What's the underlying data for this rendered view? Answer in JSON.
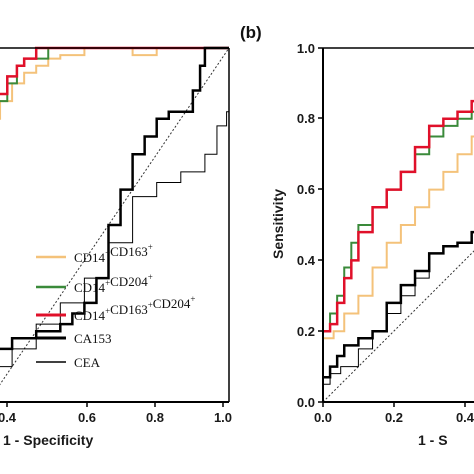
{
  "panel_label": "(b)",
  "legend": {
    "entries": [
      {
        "name": "CD14+CD163+",
        "parts": [
          [
            "CD14",
            "+"
          ],
          [
            "CD163",
            "+"
          ]
        ],
        "color": "#f4c27a",
        "width": 2
      },
      {
        "name": "CD14+CD204+",
        "parts": [
          [
            "CD14",
            "+"
          ],
          [
            "CD204",
            "+"
          ]
        ],
        "color": "#3a8a3a",
        "width": 2
      },
      {
        "name": "CD14+CD163+CD204+",
        "parts": [
          [
            "CD14",
            "+"
          ],
          [
            "CD163",
            "+"
          ],
          [
            "CD204",
            "+"
          ]
        ],
        "color": "#e0102a",
        "width": 2.5
      },
      {
        "name": "CA153",
        "parts": [
          [
            "CA153",
            ""
          ]
        ],
        "color": "#000000",
        "width": 2.5
      },
      {
        "name": "CEA",
        "parts": [
          [
            "CEA",
            ""
          ]
        ],
        "color": "#000000",
        "width": 1
      }
    ]
  },
  "chart_data": [
    {
      "type": "line",
      "panel": "a",
      "xlabel": "1 - Specificity",
      "ylabel": "",
      "xlim": [
        0,
        1
      ],
      "ylim": [
        0,
        1
      ],
      "x_ticks": [
        "0.4",
        "0.6",
        "0.8",
        "1.0"
      ],
      "y_ticks": [],
      "reference_line": "diagonal",
      "series": [
        {
          "name": "CD14+CD163+",
          "color": "#f4c27a",
          "width": 2,
          "points": [
            [
              0,
              0.7
            ],
            [
              0.02,
              0.8
            ],
            [
              0.05,
              0.85
            ],
            [
              0.1,
              0.9
            ],
            [
              0.15,
              0.93
            ],
            [
              0.2,
              0.95
            ],
            [
              0.25,
              0.97
            ],
            [
              0.3,
              0.98
            ],
            [
              0.4,
              1.0
            ],
            [
              0.5,
              1.0
            ],
            [
              0.6,
              0.98
            ],
            [
              0.7,
              1.0
            ],
            [
              1,
              1
            ]
          ]
        },
        {
          "name": "CD14+CD204+",
          "color": "#3a8a3a",
          "width": 2,
          "points": [
            [
              0,
              0.75
            ],
            [
              0.04,
              0.85
            ],
            [
              0.08,
              0.9
            ],
            [
              0.12,
              0.95
            ],
            [
              0.15,
              0.97
            ],
            [
              0.2,
              0.97
            ],
            [
              0.25,
              1.0
            ],
            [
              1,
              1
            ]
          ]
        },
        {
          "name": "CD14+CD163+CD204+",
          "color": "#e0102a",
          "width": 2.5,
          "points": [
            [
              0,
              0.72
            ],
            [
              0.02,
              0.87
            ],
            [
              0.05,
              0.87
            ],
            [
              0.08,
              0.92
            ],
            [
              0.12,
              0.95
            ],
            [
              0.15,
              0.97
            ],
            [
              0.2,
              1.0
            ],
            [
              1,
              1
            ]
          ]
        },
        {
          "name": "CA153",
          "color": "#000000",
          "width": 2.5,
          "points": [
            [
              0,
              0.15
            ],
            [
              0.1,
              0.18
            ],
            [
              0.2,
              0.2
            ],
            [
              0.3,
              0.22
            ],
            [
              0.35,
              0.25
            ],
            [
              0.4,
              0.28
            ],
            [
              0.45,
              0.35
            ],
            [
              0.5,
              0.5
            ],
            [
              0.55,
              0.6
            ],
            [
              0.6,
              0.7
            ],
            [
              0.65,
              0.75
            ],
            [
              0.7,
              0.8
            ],
            [
              0.75,
              0.82
            ],
            [
              0.8,
              0.82
            ],
            [
              0.85,
              0.88
            ],
            [
              0.88,
              0.95
            ],
            [
              0.9,
              1.0
            ],
            [
              1,
              1
            ]
          ]
        },
        {
          "name": "CEA",
          "color": "#000000",
          "width": 1,
          "points": [
            [
              0,
              0.1
            ],
            [
              0.1,
              0.15
            ],
            [
              0.2,
              0.22
            ],
            [
              0.3,
              0.28
            ],
            [
              0.4,
              0.35
            ],
            [
              0.5,
              0.45
            ],
            [
              0.6,
              0.58
            ],
            [
              0.7,
              0.62
            ],
            [
              0.8,
              0.65
            ],
            [
              0.9,
              0.7
            ],
            [
              0.95,
              0.78
            ],
            [
              0.99,
              0.82
            ],
            [
              1,
              1
            ]
          ]
        }
      ]
    },
    {
      "type": "line",
      "panel": "b",
      "xlabel": "1 - S",
      "ylabel": "Sensitivity",
      "xlim": [
        0,
        0.5
      ],
      "ylim": [
        0,
        1
      ],
      "x_ticks": [
        "0.0",
        "0.2",
        "0.4"
      ],
      "y_ticks": [
        "0.0",
        "0.2",
        "0.4",
        "0.6",
        "0.8",
        "1.0"
      ],
      "reference_line": "diagonal",
      "series": [
        {
          "name": "CD14+CD163+",
          "color": "#f4c27a",
          "width": 2,
          "points": [
            [
              0,
              0.18
            ],
            [
              0.03,
              0.2
            ],
            [
              0.06,
              0.25
            ],
            [
              0.1,
              0.3
            ],
            [
              0.14,
              0.38
            ],
            [
              0.18,
              0.45
            ],
            [
              0.22,
              0.5
            ],
            [
              0.26,
              0.55
            ],
            [
              0.3,
              0.6
            ],
            [
              0.34,
              0.65
            ],
            [
              0.38,
              0.7
            ],
            [
              0.42,
              0.75
            ],
            [
              0.46,
              0.78
            ],
            [
              0.5,
              0.78
            ]
          ]
        },
        {
          "name": "CD14+CD204+",
          "color": "#3a8a3a",
          "width": 2,
          "points": [
            [
              0,
              0.2
            ],
            [
              0.02,
              0.25
            ],
            [
              0.04,
              0.3
            ],
            [
              0.06,
              0.38
            ],
            [
              0.08,
              0.45
            ],
            [
              0.1,
              0.5
            ],
            [
              0.14,
              0.55
            ],
            [
              0.18,
              0.6
            ],
            [
              0.22,
              0.65
            ],
            [
              0.26,
              0.7
            ],
            [
              0.3,
              0.75
            ],
            [
              0.34,
              0.78
            ],
            [
              0.38,
              0.8
            ],
            [
              0.42,
              0.82
            ],
            [
              0.46,
              0.85
            ],
            [
              0.5,
              0.86
            ]
          ]
        },
        {
          "name": "CD14+CD163+CD204+",
          "color": "#e0102a",
          "width": 2.5,
          "points": [
            [
              0,
              0.2
            ],
            [
              0.02,
              0.22
            ],
            [
              0.04,
              0.28
            ],
            [
              0.06,
              0.35
            ],
            [
              0.08,
              0.4
            ],
            [
              0.1,
              0.48
            ],
            [
              0.14,
              0.55
            ],
            [
              0.18,
              0.6
            ],
            [
              0.22,
              0.65
            ],
            [
              0.26,
              0.72
            ],
            [
              0.3,
              0.78
            ],
            [
              0.34,
              0.8
            ],
            [
              0.38,
              0.82
            ],
            [
              0.42,
              0.85
            ],
            [
              0.46,
              0.86
            ],
            [
              0.5,
              0.86
            ]
          ]
        },
        {
          "name": "CA153",
          "color": "#000000",
          "width": 2.5,
          "points": [
            [
              0,
              0.07
            ],
            [
              0.02,
              0.1
            ],
            [
              0.04,
              0.13
            ],
            [
              0.06,
              0.16
            ],
            [
              0.1,
              0.18
            ],
            [
              0.14,
              0.2
            ],
            [
              0.18,
              0.28
            ],
            [
              0.22,
              0.33
            ],
            [
              0.26,
              0.37
            ],
            [
              0.3,
              0.42
            ],
            [
              0.34,
              0.44
            ],
            [
              0.38,
              0.45
            ],
            [
              0.42,
              0.48
            ],
            [
              0.44,
              0.5
            ],
            [
              0.46,
              0.57
            ],
            [
              0.48,
              0.6
            ],
            [
              0.5,
              0.66
            ]
          ]
        },
        {
          "name": "CEA",
          "color": "#000000",
          "width": 1,
          "points": [
            [
              0,
              0.05
            ],
            [
              0.02,
              0.08
            ],
            [
              0.05,
              0.1
            ],
            [
              0.1,
              0.15
            ],
            [
              0.14,
              0.2
            ],
            [
              0.18,
              0.25
            ],
            [
              0.22,
              0.3
            ],
            [
              0.26,
              0.35
            ],
            [
              0.3,
              0.42
            ],
            [
              0.34,
              0.44
            ],
            [
              0.38,
              0.45
            ],
            [
              0.42,
              0.48
            ],
            [
              0.46,
              0.52
            ],
            [
              0.5,
              0.57
            ]
          ]
        }
      ]
    }
  ]
}
